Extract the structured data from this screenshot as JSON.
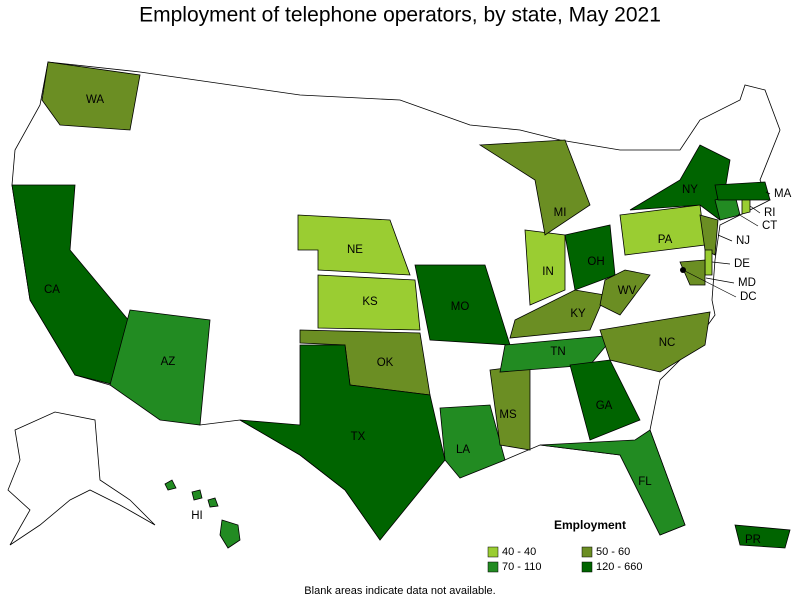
{
  "title": "Employment of telephone operators, by state, May 2021",
  "legend": {
    "title": "Employment",
    "items": [
      {
        "label": "40 - 40",
        "color": "#9acd32"
      },
      {
        "label": "50 - 60",
        "color": "#6b8e23"
      },
      {
        "label": "70 - 110",
        "color": "#228b22"
      },
      {
        "label": "120 - 660",
        "color": "#006400"
      }
    ]
  },
  "states": [
    {
      "abbr": "WA",
      "level": 1
    },
    {
      "abbr": "CA",
      "level": 3
    },
    {
      "abbr": "AZ",
      "level": 2
    },
    {
      "abbr": "NE",
      "level": 0
    },
    {
      "abbr": "KS",
      "level": 0
    },
    {
      "abbr": "OK",
      "level": 1
    },
    {
      "abbr": "TX",
      "level": 3
    },
    {
      "abbr": "MO",
      "level": 3
    },
    {
      "abbr": "LA",
      "level": 2
    },
    {
      "abbr": "MS",
      "level": 1
    },
    {
      "abbr": "TN",
      "level": 2
    },
    {
      "abbr": "GA",
      "level": 3
    },
    {
      "abbr": "FL",
      "level": 2
    },
    {
      "abbr": "IN",
      "level": 0
    },
    {
      "abbr": "OH",
      "level": 3
    },
    {
      "abbr": "MI",
      "level": 1
    },
    {
      "abbr": "KY",
      "level": 1
    },
    {
      "abbr": "WV",
      "level": 1
    },
    {
      "abbr": "NC",
      "level": 1
    },
    {
      "abbr": "PA",
      "level": 0
    },
    {
      "abbr": "NY",
      "level": 3
    },
    {
      "abbr": "NJ",
      "level": 1
    },
    {
      "abbr": "CT",
      "level": 2
    },
    {
      "abbr": "RI",
      "level": 0
    },
    {
      "abbr": "MA",
      "level": 3
    },
    {
      "abbr": "DE",
      "level": 0
    },
    {
      "abbr": "MD",
      "level": 1
    },
    {
      "abbr": "DC",
      "level": 3
    },
    {
      "abbr": "HI",
      "level": 2
    },
    {
      "abbr": "PR",
      "level": 3
    }
  ],
  "note": "Blank areas indicate data not available."
}
